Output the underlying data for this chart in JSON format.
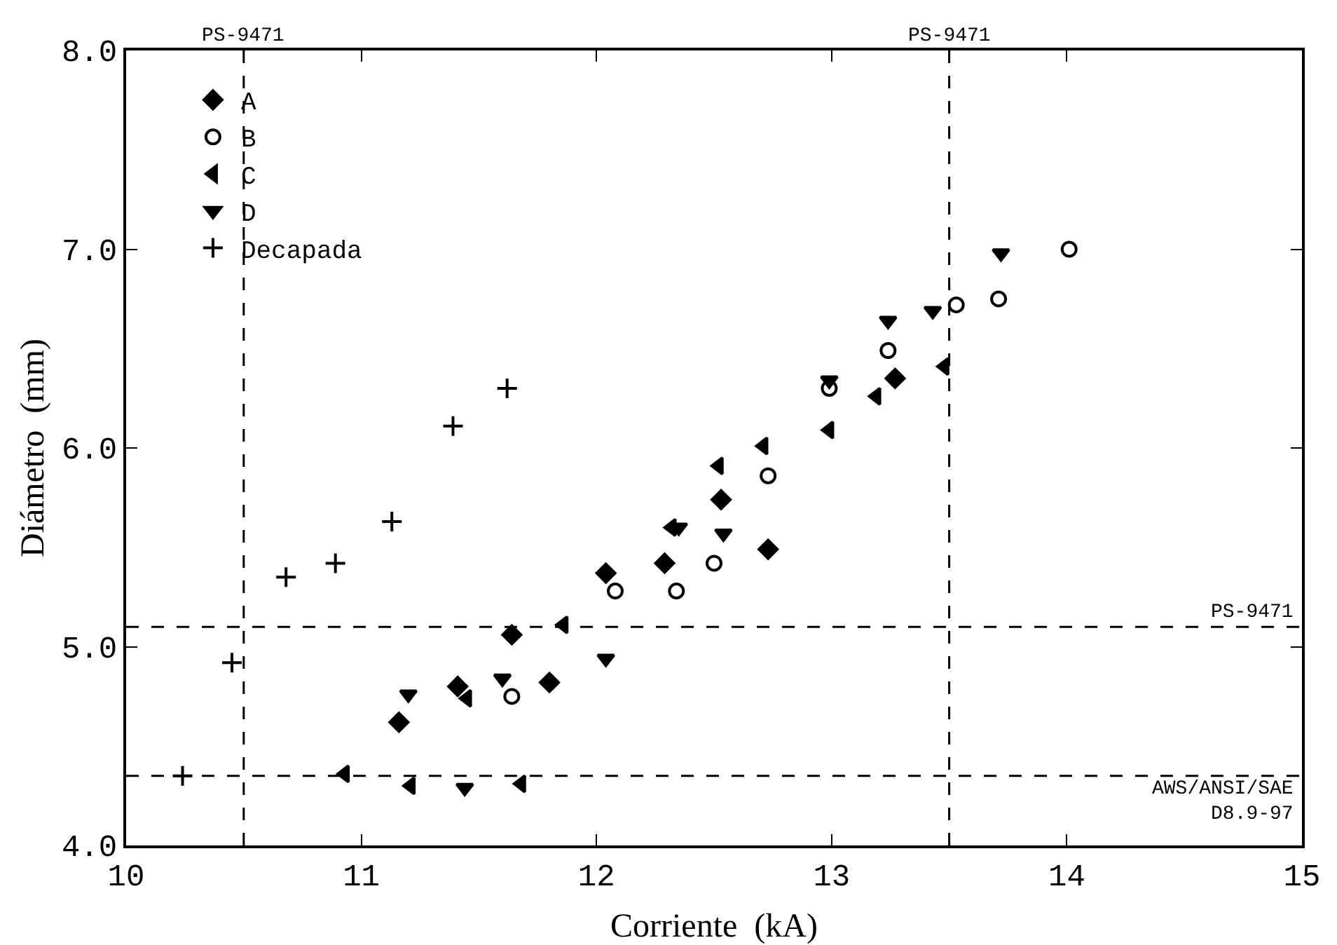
{
  "chart_data": {
    "type": "scatter",
    "xlabel": "Corriente  (kA)",
    "ylabel": "Diámetro  (mm)",
    "xlim": [
      10,
      15
    ],
    "xticks": [
      10,
      11,
      12,
      13,
      14,
      15
    ],
    "ylim": [
      4,
      8
    ],
    "yticks": [
      {
        "value": 4,
        "label": "4.0"
      },
      {
        "value": 5,
        "label": "5.0"
      },
      {
        "value": 6,
        "label": "6.0"
      },
      {
        "value": 7,
        "label": "7.0"
      },
      {
        "value": 8,
        "label": "8.0"
      }
    ],
    "grid": false,
    "legend": "top left",
    "series": [
      {
        "name": "A",
        "color": "#000000",
        "marker": "diamond",
        "x": [
          11.16,
          11.41,
          11.64,
          11.8,
          12.04,
          12.29,
          12.53,
          12.73,
          13.27
        ],
        "values": [
          4.62,
          4.8,
          5.06,
          4.82,
          5.37,
          5.42,
          5.74,
          5.49,
          6.35
        ]
      },
      {
        "name": "B",
        "color": "#000000",
        "marker": "circle-open",
        "x": [
          11.64,
          12.08,
          12.34,
          12.5,
          12.73,
          12.99,
          13.24,
          13.53,
          13.71,
          14.01
        ],
        "values": [
          4.75,
          5.28,
          5.28,
          5.42,
          5.86,
          6.3,
          6.49,
          6.72,
          6.75,
          7.0
        ]
      },
      {
        "name": "C",
        "color": "#000000",
        "marker": "triangle-left",
        "x": [
          10.93,
          11.21,
          11.45,
          11.68,
          11.86,
          12.32,
          12.52,
          12.71,
          12.99,
          13.19,
          13.48
        ],
        "values": [
          4.36,
          4.3,
          4.74,
          4.31,
          5.11,
          5.6,
          5.91,
          6.01,
          6.09,
          6.26,
          6.41
        ]
      },
      {
        "name": "D",
        "color": "#000000",
        "marker": "triangle-down",
        "x": [
          11.2,
          11.44,
          11.6,
          11.64,
          12.04,
          12.35,
          12.54,
          12.99,
          13.24,
          13.43,
          13.72
        ],
        "values": [
          4.76,
          4.29,
          4.84,
          null,
          4.94,
          5.6,
          5.57,
          6.34,
          6.64,
          6.69,
          6.98
        ]
      },
      {
        "name": "Decapada",
        "color": "#000000",
        "marker": "cross",
        "x": [
          10.24,
          10.45,
          10.68,
          10.89,
          11.13,
          11.39,
          11.62
        ],
        "values": [
          4.35,
          4.92,
          5.35,
          5.42,
          5.63,
          6.11,
          6.3
        ]
      }
    ],
    "ref_lines": [
      {
        "axis": "x",
        "value": 10.5,
        "label": "PS-9471",
        "line_style": "dashed",
        "color": "#000000"
      },
      {
        "axis": "x",
        "value": 13.5,
        "label": "PS-9471",
        "line_style": "dashed",
        "color": "#000000"
      },
      {
        "axis": "y",
        "value": 5.1,
        "label": "PS-9471",
        "line_style": "dashed",
        "color": "#000000"
      },
      {
        "axis": "y",
        "value": 4.35,
        "label": "AWS/ANSI/SAE\nD8.9-97",
        "line_style": "dashed",
        "color": "#000000"
      }
    ]
  }
}
